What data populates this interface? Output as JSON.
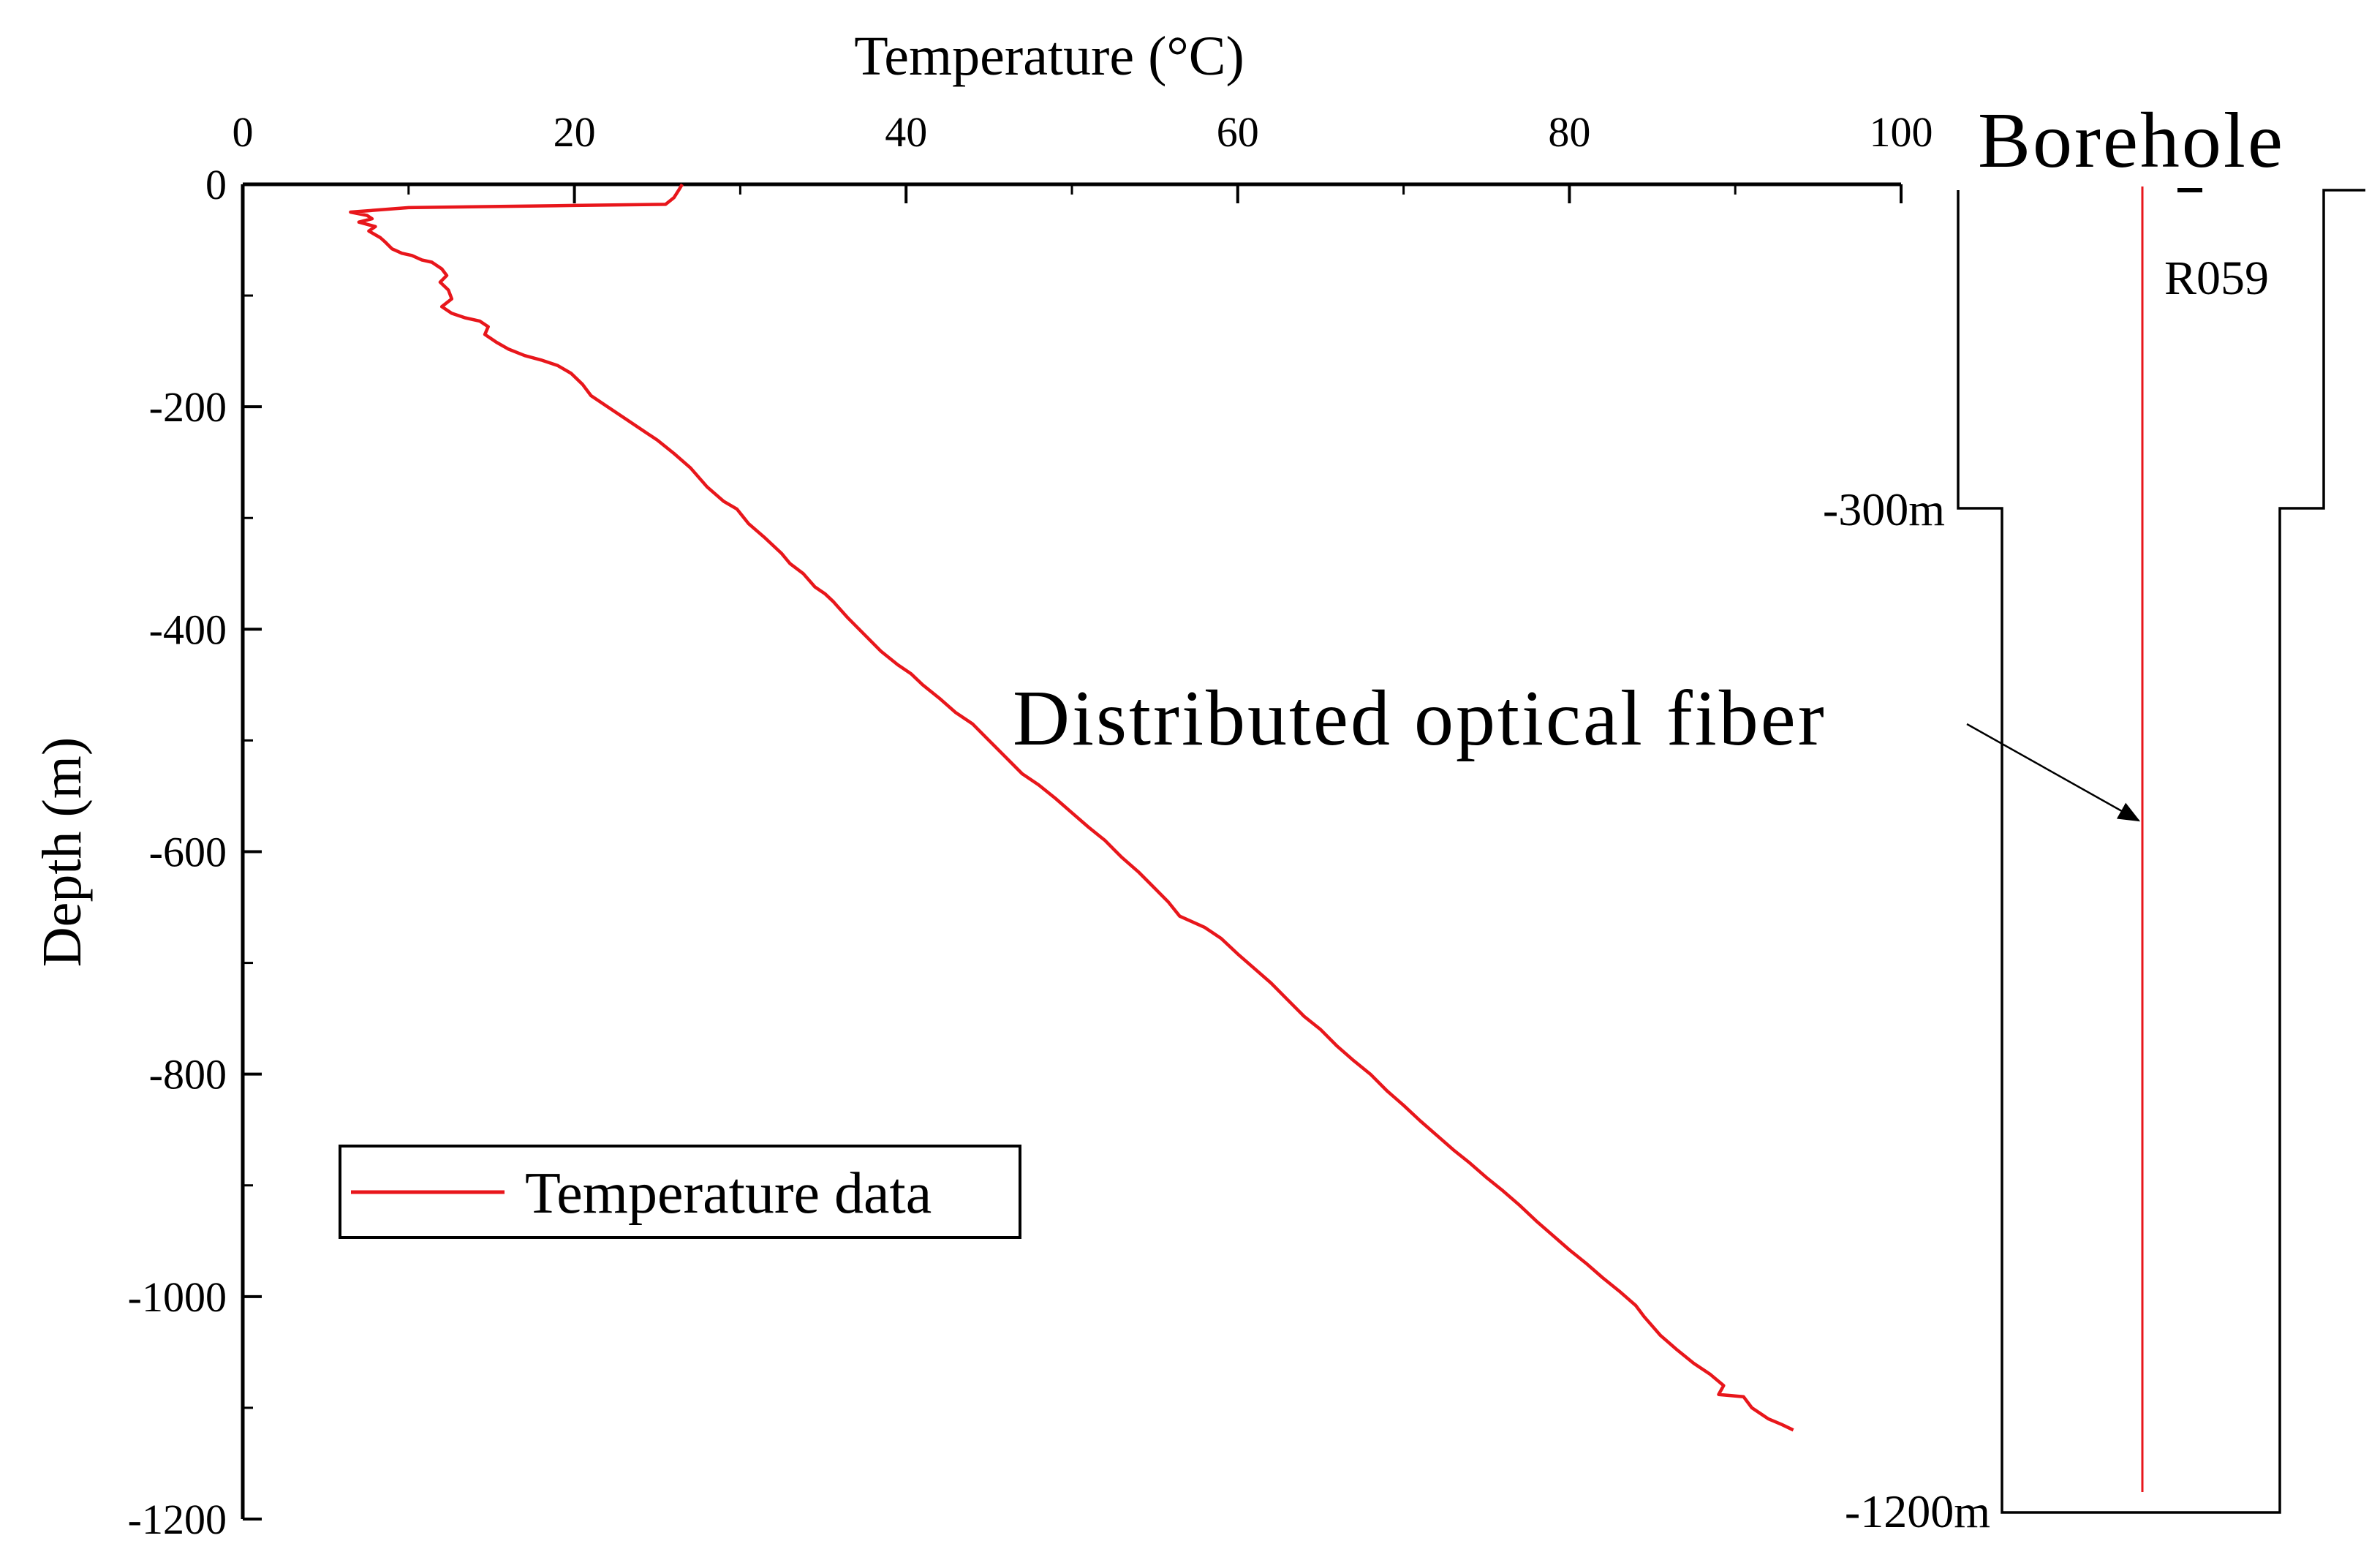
{
  "chart_data": {
    "type": "line",
    "title": "",
    "xlabel": "Temperature (°C)",
    "ylabel": "Depth (m)",
    "xlim": [
      0,
      100
    ],
    "ylim": [
      -1200,
      0
    ],
    "x_ticks": [
      "0",
      "20",
      "40",
      "60",
      "80",
      "100"
    ],
    "x_tick_values": [
      0,
      20,
      40,
      60,
      80,
      100
    ],
    "y_ticks": [
      "0",
      "-200",
      "-400",
      "-600",
      "-800",
      "-1000",
      "-1200"
    ],
    "y_tick_values": [
      0,
      -200,
      -400,
      -600,
      -800,
      -1000,
      -1200
    ],
    "grid": false,
    "legend": {
      "position": "bottom-left",
      "entries": [
        "Temperature data"
      ]
    },
    "series": [
      {
        "name": "Temperature data",
        "color": "#e8161b",
        "points": [
          [
            26.5,
            0
          ],
          [
            26.3,
            -5
          ],
          [
            26.0,
            -12
          ],
          [
            25.5,
            -18
          ],
          [
            20.0,
            -19
          ],
          [
            10.0,
            -21
          ],
          [
            6.5,
            -25
          ],
          [
            7.5,
            -28
          ],
          [
            7.8,
            -31
          ],
          [
            7.0,
            -34
          ],
          [
            8.0,
            -38
          ],
          [
            7.6,
            -42
          ],
          [
            8.3,
            -48
          ],
          [
            8.6,
            -52
          ],
          [
            9.0,
            -58
          ],
          [
            9.6,
            -62
          ],
          [
            10.2,
            -64
          ],
          [
            10.8,
            -68
          ],
          [
            11.4,
            -70
          ],
          [
            12.0,
            -76
          ],
          [
            12.3,
            -82
          ],
          [
            11.9,
            -88
          ],
          [
            12.4,
            -95
          ],
          [
            12.6,
            -103
          ],
          [
            12.0,
            -110
          ],
          [
            12.6,
            -116
          ],
          [
            13.4,
            -120
          ],
          [
            14.3,
            -123
          ],
          [
            14.8,
            -128
          ],
          [
            14.6,
            -135
          ],
          [
            15.3,
            -142
          ],
          [
            16.0,
            -148
          ],
          [
            17.0,
            -154
          ],
          [
            18.0,
            -158
          ],
          [
            19.0,
            -163
          ],
          [
            19.8,
            -170
          ],
          [
            20.5,
            -180
          ],
          [
            21.0,
            -190
          ],
          [
            22.0,
            -200
          ],
          [
            23.0,
            -210
          ],
          [
            24.0,
            -220
          ],
          [
            25.0,
            -230
          ],
          [
            26.0,
            -242
          ],
          [
            27.0,
            -255
          ],
          [
            28.0,
            -272
          ],
          [
            29.0,
            -285
          ],
          [
            29.8,
            -292
          ],
          [
            30.5,
            -305
          ],
          [
            31.5,
            -318
          ],
          [
            32.5,
            -332
          ],
          [
            33.0,
            -341
          ],
          [
            33.8,
            -350
          ],
          [
            34.5,
            -362
          ],
          [
            35.1,
            -368
          ],
          [
            35.6,
            -375
          ],
          [
            36.5,
            -390
          ],
          [
            37.5,
            -405
          ],
          [
            38.5,
            -420
          ],
          [
            39.5,
            -432
          ],
          [
            40.3,
            -440
          ],
          [
            41.0,
            -450
          ],
          [
            42.0,
            -462
          ],
          [
            43.0,
            -475
          ],
          [
            44.0,
            -485
          ],
          [
            45.0,
            -500
          ],
          [
            46.0,
            -515
          ],
          [
            47.0,
            -530
          ],
          [
            48.0,
            -540
          ],
          [
            49.0,
            -552
          ],
          [
            50.0,
            -565
          ],
          [
            51.0,
            -578
          ],
          [
            52.0,
            -590
          ],
          [
            53.0,
            -605
          ],
          [
            54.0,
            -618
          ],
          [
            54.8,
            -630
          ],
          [
            55.8,
            -645
          ],
          [
            56.5,
            -658
          ],
          [
            58.0,
            -668
          ],
          [
            59.0,
            -678
          ],
          [
            60.0,
            -692
          ],
          [
            61.0,
            -705
          ],
          [
            62.0,
            -718
          ],
          [
            63.0,
            -733
          ],
          [
            64.0,
            -748
          ],
          [
            65.0,
            -760
          ],
          [
            66.0,
            -775
          ],
          [
            67.0,
            -788
          ],
          [
            68.0,
            -800
          ],
          [
            69.0,
            -815
          ],
          [
            70.0,
            -828
          ],
          [
            71.0,
            -842
          ],
          [
            72.0,
            -855
          ],
          [
            73.0,
            -868
          ],
          [
            74.0,
            -880
          ],
          [
            75.0,
            -893
          ],
          [
            76.0,
            -905
          ],
          [
            77.0,
            -918
          ],
          [
            78.0,
            -932
          ],
          [
            79.0,
            -945
          ],
          [
            80.0,
            -958
          ],
          [
            81.0,
            -970
          ],
          [
            82.0,
            -983
          ],
          [
            83.0,
            -995
          ],
          [
            84.0,
            -1008
          ],
          [
            84.5,
            -1018
          ],
          [
            85.5,
            -1035
          ],
          [
            86.5,
            -1048
          ],
          [
            87.5,
            -1060
          ],
          [
            88.5,
            -1070
          ],
          [
            89.3,
            -1080
          ],
          [
            89.0,
            -1088
          ],
          [
            90.5,
            -1090
          ],
          [
            91.0,
            -1100
          ],
          [
            92.0,
            -1110
          ],
          [
            92.8,
            -1115
          ],
          [
            93.5,
            -1120
          ]
        ]
      }
    ]
  },
  "borehole": {
    "title": "Borehole",
    "id": "R059",
    "depth_upper_label": "-300m",
    "depth_lower_label": "-1200m",
    "fiber_label": "Distributed optical fiber",
    "outline_color": "#000000",
    "fiber_color": "#e8161b"
  }
}
